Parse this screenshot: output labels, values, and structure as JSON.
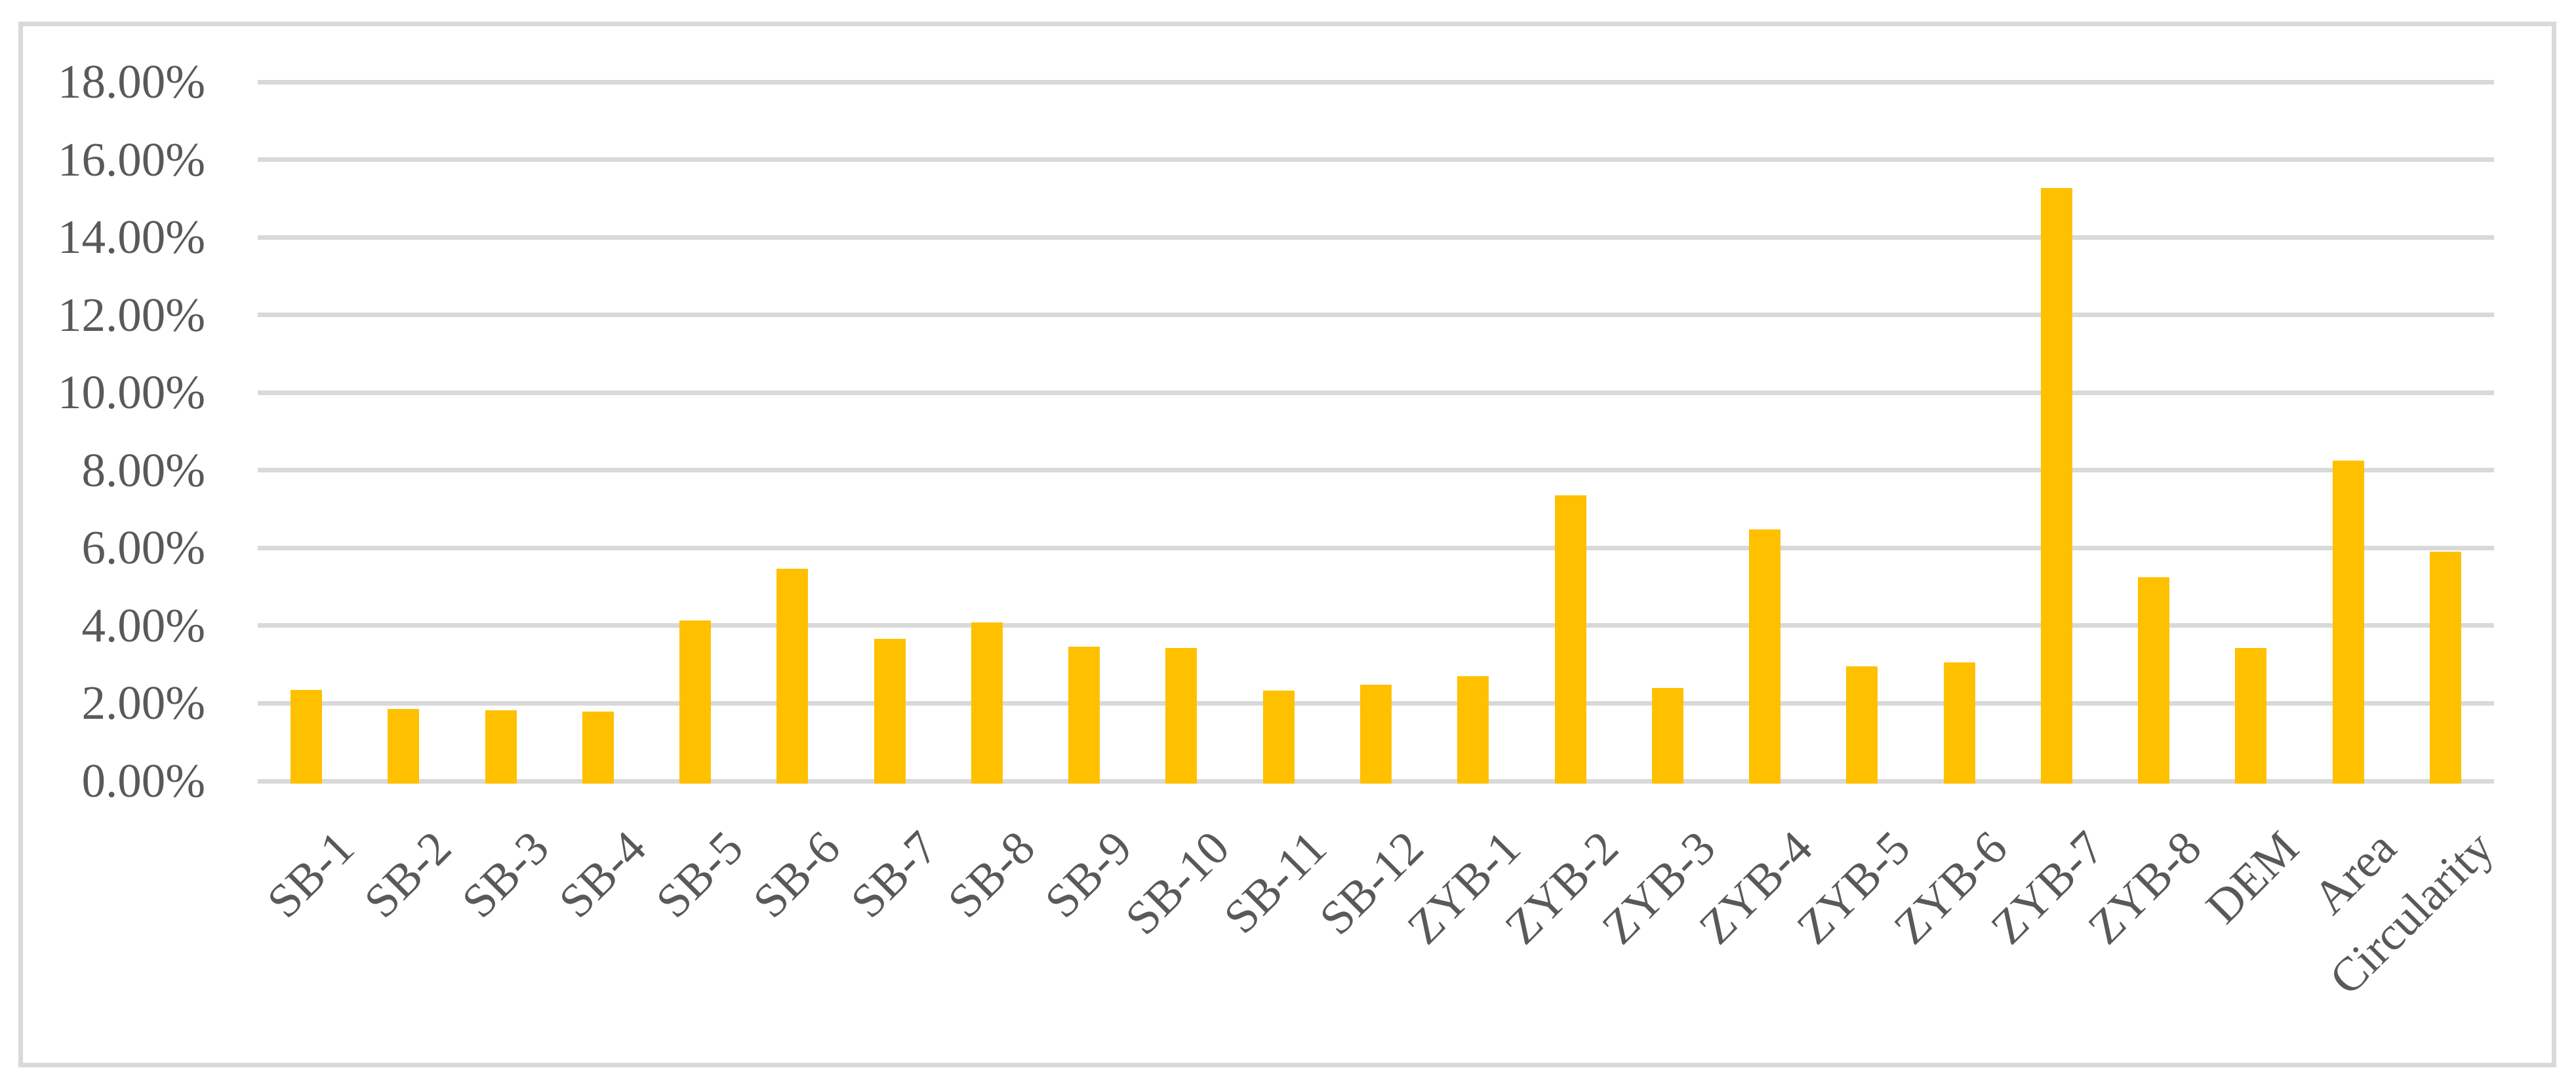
{
  "chart_data": {
    "type": "bar",
    "title": "",
    "xlabel": "",
    "ylabel": "",
    "categories": [
      "SB-1",
      "SB-2",
      "SB-3",
      "SB-4",
      "SB-5",
      "SB-6",
      "SB-7",
      "SB-8",
      "SB-9",
      "SB-10",
      "SB-11",
      "SB-12",
      "ZYB-1",
      "ZYB-2",
      "ZYB-3",
      "ZYB-4",
      "ZYB-5",
      "ZYB-6",
      "ZYB-7",
      "ZYB-8",
      "DEM",
      "Area",
      "Circularity"
    ],
    "values": [
      2.35,
      1.85,
      1.83,
      1.78,
      4.14,
      5.47,
      3.66,
      4.08,
      3.46,
      3.42,
      2.33,
      2.48,
      2.7,
      7.35,
      2.4,
      6.47,
      2.95,
      3.05,
      15.27,
      5.25,
      3.42,
      8.25,
      5.9
    ],
    "value_unit": "percent",
    "ylim": [
      0,
      18
    ],
    "ytick_step": 2,
    "ytick_labels": [
      "0.00%",
      "2.00%",
      "4.00%",
      "6.00%",
      "8.00%",
      "10.00%",
      "12.00%",
      "14.00%",
      "16.00%",
      "18.00%"
    ],
    "grid": true,
    "legend": false,
    "colors": {
      "bar": "#FFC000",
      "gridline": "#D9D9D9",
      "frame_border": "#D9D9D9",
      "axis_text": "#595959",
      "background": "#FFFFFF"
    }
  }
}
